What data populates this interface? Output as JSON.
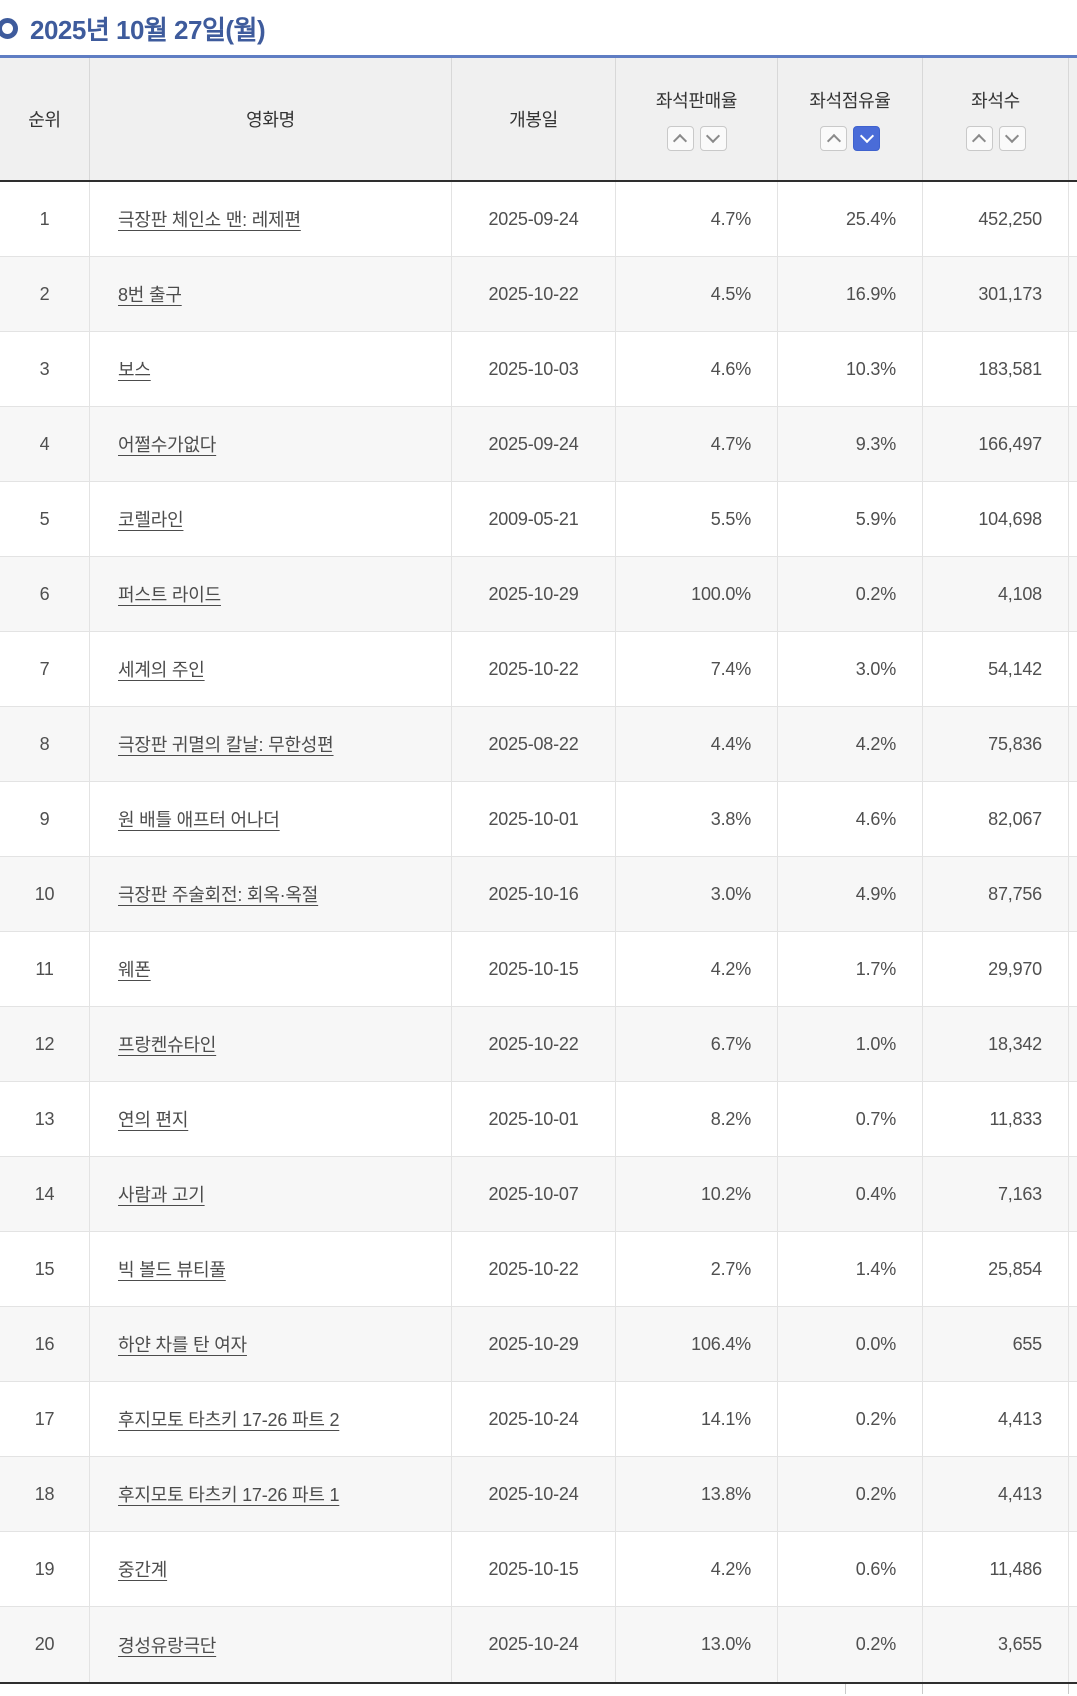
{
  "page": {
    "title": "2025년 10월 27일(월)"
  },
  "colors": {
    "accent_blue": "#3e5b9c",
    "divider_blue": "#5f7dc3",
    "active_sort_blue": "#4a6cd8",
    "header_bg": "#f0f0f0",
    "alt_row_bg": "#f7f7f7"
  },
  "table": {
    "columns": [
      {
        "label": "순위",
        "sortable": false,
        "sort_active": null
      },
      {
        "label": "영화명",
        "sortable": false,
        "sort_active": null
      },
      {
        "label": "개봉일",
        "sortable": false,
        "sort_active": null
      },
      {
        "label": "좌석판매율",
        "sortable": true,
        "sort_active": null
      },
      {
        "label": "좌석점유율",
        "sortable": true,
        "sort_active": "desc"
      },
      {
        "label": "좌석수",
        "sortable": true,
        "sort_active": null
      }
    ],
    "rows": [
      {
        "rank": "1",
        "title": "극장판 체인소 맨: 레제편",
        "release_date": "2025-09-24",
        "seat_sales_rate": "4.7%",
        "seat_occupancy_rate": "25.4%",
        "seats": "452,250"
      },
      {
        "rank": "2",
        "title": "8번 출구",
        "release_date": "2025-10-22",
        "seat_sales_rate": "4.5%",
        "seat_occupancy_rate": "16.9%",
        "seats": "301,173"
      },
      {
        "rank": "3",
        "title": "보스",
        "release_date": "2025-10-03",
        "seat_sales_rate": "4.6%",
        "seat_occupancy_rate": "10.3%",
        "seats": "183,581"
      },
      {
        "rank": "4",
        "title": "어쩔수가없다",
        "release_date": "2025-09-24",
        "seat_sales_rate": "4.7%",
        "seat_occupancy_rate": "9.3%",
        "seats": "166,497"
      },
      {
        "rank": "5",
        "title": "코렐라인",
        "release_date": "2009-05-21",
        "seat_sales_rate": "5.5%",
        "seat_occupancy_rate": "5.9%",
        "seats": "104,698"
      },
      {
        "rank": "6",
        "title": "퍼스트 라이드",
        "release_date": "2025-10-29",
        "seat_sales_rate": "100.0%",
        "seat_occupancy_rate": "0.2%",
        "seats": "4,108"
      },
      {
        "rank": "7",
        "title": "세계의 주인",
        "release_date": "2025-10-22",
        "seat_sales_rate": "7.4%",
        "seat_occupancy_rate": "3.0%",
        "seats": "54,142"
      },
      {
        "rank": "8",
        "title": "극장판 귀멸의 칼날: 무한성편",
        "release_date": "2025-08-22",
        "seat_sales_rate": "4.4%",
        "seat_occupancy_rate": "4.2%",
        "seats": "75,836"
      },
      {
        "rank": "9",
        "title": "원 배틀 애프터 어나더",
        "release_date": "2025-10-01",
        "seat_sales_rate": "3.8%",
        "seat_occupancy_rate": "4.6%",
        "seats": "82,067"
      },
      {
        "rank": "10",
        "title": "극장판 주술회전: 회옥·옥절",
        "release_date": "2025-10-16",
        "seat_sales_rate": "3.0%",
        "seat_occupancy_rate": "4.9%",
        "seats": "87,756"
      },
      {
        "rank": "11",
        "title": "웨폰",
        "release_date": "2025-10-15",
        "seat_sales_rate": "4.2%",
        "seat_occupancy_rate": "1.7%",
        "seats": "29,970"
      },
      {
        "rank": "12",
        "title": "프랑켄슈타인",
        "release_date": "2025-10-22",
        "seat_sales_rate": "6.7%",
        "seat_occupancy_rate": "1.0%",
        "seats": "18,342"
      },
      {
        "rank": "13",
        "title": "연의 편지",
        "release_date": "2025-10-01",
        "seat_sales_rate": "8.2%",
        "seat_occupancy_rate": "0.7%",
        "seats": "11,833"
      },
      {
        "rank": "14",
        "title": "사람과 고기",
        "release_date": "2025-10-07",
        "seat_sales_rate": "10.2%",
        "seat_occupancy_rate": "0.4%",
        "seats": "7,163"
      },
      {
        "rank": "15",
        "title": "빅 볼드 뷰티풀",
        "release_date": "2025-10-22",
        "seat_sales_rate": "2.7%",
        "seat_occupancy_rate": "1.4%",
        "seats": "25,854"
      },
      {
        "rank": "16",
        "title": "하얀 차를 탄 여자",
        "release_date": "2025-10-29",
        "seat_sales_rate": "106.4%",
        "seat_occupancy_rate": "0.0%",
        "seats": "655"
      },
      {
        "rank": "17",
        "title": "후지모토 타츠키 17-26 파트 2",
        "release_date": "2025-10-24",
        "seat_sales_rate": "14.1%",
        "seat_occupancy_rate": "0.2%",
        "seats": "4,413"
      },
      {
        "rank": "18",
        "title": "후지모토 타츠키 17-26 파트 1",
        "release_date": "2025-10-24",
        "seat_sales_rate": "13.8%",
        "seat_occupancy_rate": "0.2%",
        "seats": "4,413"
      },
      {
        "rank": "19",
        "title": "중간계",
        "release_date": "2025-10-15",
        "seat_sales_rate": "4.2%",
        "seat_occupancy_rate": "0.6%",
        "seats": "11,486"
      },
      {
        "rank": "20",
        "title": "경성유랑극단",
        "release_date": "2025-10-24",
        "seat_sales_rate": "13.0%",
        "seat_occupancy_rate": "0.2%",
        "seats": "3,655"
      }
    ]
  }
}
